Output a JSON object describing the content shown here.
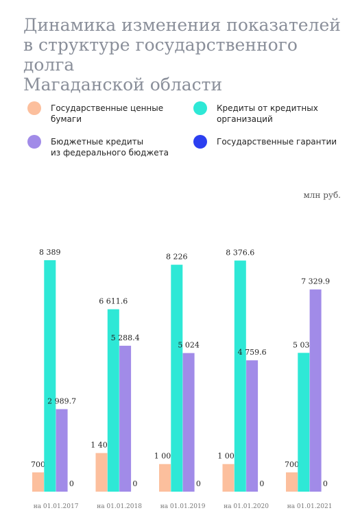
{
  "title_lines": [
    "Динамика изменения показателей",
    "в структуре государственного долга",
    "Магаданской области"
  ],
  "unit": "млн руб.",
  "legend": [
    {
      "lines": [
        "Государственные ценные",
        "бумаги"
      ],
      "color": "#fcbf9d"
    },
    {
      "lines": [
        "Кредиты от кредитных",
        "организаций"
      ],
      "color": "#2ee8d6"
    },
    {
      "lines": [
        "Бюджетные кредиты",
        "из федерального бюджета"
      ],
      "color": "#a18be8"
    },
    {
      "lines": [
        "Государственные гарантии"
      ],
      "color": "#2b3ff0"
    }
  ],
  "chart_data": {
    "type": "bar",
    "categories": [
      "на 01.01.2017",
      "на 01.01.2018",
      "на 01.01.2019",
      "на 01.01.2020",
      "на 01.01.2021"
    ],
    "series": [
      {
        "name": "Государственные ценные бумаги",
        "color": "#fcbf9d",
        "values": [
          700,
          1400,
          1000,
          1000,
          700
        ],
        "labels": [
          "700",
          "1 400",
          "1 000",
          "1 000",
          "700"
        ]
      },
      {
        "name": "Кредиты от кредитных организаций",
        "color": "#2ee8d6",
        "values": [
          8389,
          6611.6,
          8226,
          8376.6,
          5030
        ],
        "labels": [
          "8 389",
          "6 611.6",
          "8 226",
          "8 376.6",
          "5 030"
        ]
      },
      {
        "name": "Бюджетные кредиты из федерального бюджета",
        "color": "#a18be8",
        "values": [
          2989.7,
          5288.4,
          5024,
          4759.6,
          7329.9
        ],
        "labels": [
          "2 989.7",
          "5 288.4",
          "5 024",
          "4 759.6",
          "7 329.9"
        ]
      },
      {
        "name": "Государственные гарантии",
        "color": "#2b3ff0",
        "values": [
          0,
          0,
          0,
          0,
          0
        ],
        "labels": [
          "0",
          "0",
          "0",
          "0",
          "0"
        ]
      }
    ],
    "ylim": [
      0,
      8389
    ],
    "grid": false,
    "legend_position": "top"
  }
}
